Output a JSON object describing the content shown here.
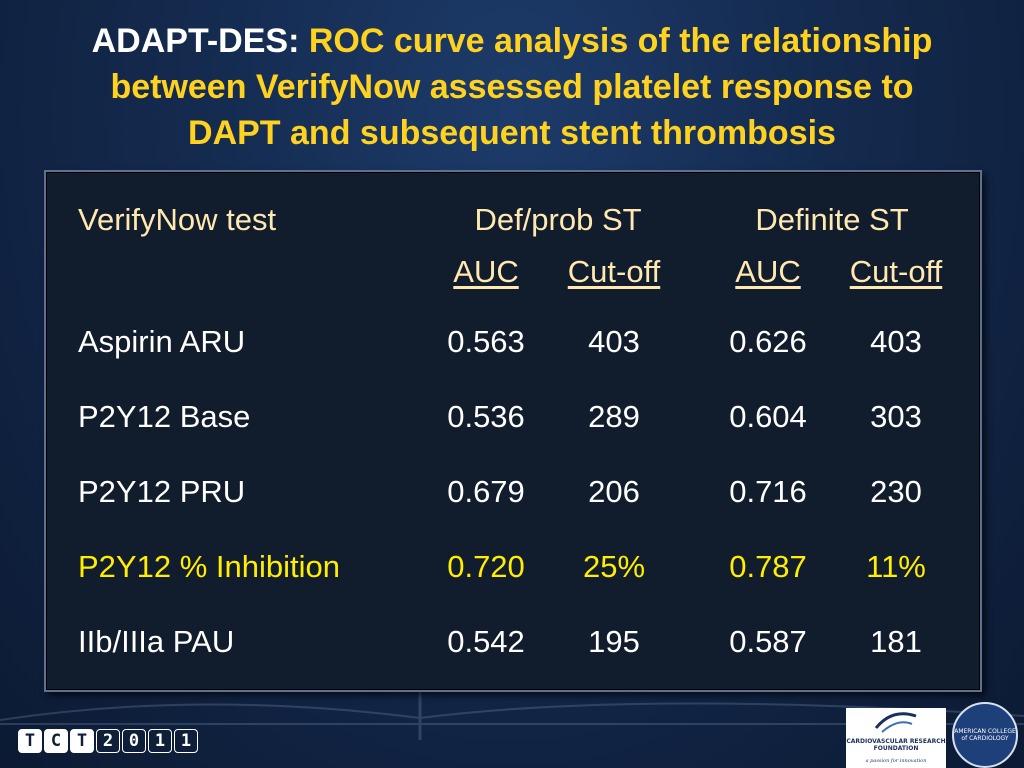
{
  "title": {
    "prefix": "ADAPT-DES:",
    "line1_rest": "ROC curve analysis of the relationship",
    "line2": "between VerifyNow assessed platelet response to",
    "line3": "DAPT and  subsequent stent thrombosis"
  },
  "table": {
    "col_test": "VerifyNow test",
    "group1": "Def/prob ST",
    "group2": "Definite ST",
    "sub_auc": "AUC",
    "sub_cutoff": "Cut-off",
    "rows": [
      {
        "test": "Aspirin ARU",
        "auc1": "0.563",
        "cut1": "403",
        "auc2": "0.626",
        "cut2": "403"
      },
      {
        "test": "P2Y12 Base",
        "auc1": "0.536",
        "cut1": "289",
        "auc2": "0.604",
        "cut2": "303"
      },
      {
        "test": "P2Y12 PRU",
        "auc1": "0.679",
        "cut1": "206",
        "auc2": "0.716",
        "cut2": "230"
      },
      {
        "test": "P2Y12 % Inhibition",
        "auc1": "0.720",
        "cut1": "25%",
        "auc2": "0.787",
        "cut2": "11%"
      },
      {
        "test": "IIb/IIIa PAU",
        "auc1": "0.542",
        "cut1": "195",
        "auc2": "0.587",
        "cut2": "181"
      }
    ]
  },
  "footer": {
    "logo_chars": [
      "T",
      "C",
      "T",
      "2",
      "0",
      "1",
      "1"
    ],
    "crf_name": "CARDIOVASCULAR RESEARCH FOUNDATION",
    "crf_tagline": "a passion for innovation",
    "acc_seal": "AMERICAN COLLEGE of CARDIOLOGY"
  },
  "colors": {
    "title_accent": "#ffd21f",
    "header_text": "#ffe9b0",
    "highlight_row": "#ffee00",
    "panel_bg": "#111c2d"
  }
}
